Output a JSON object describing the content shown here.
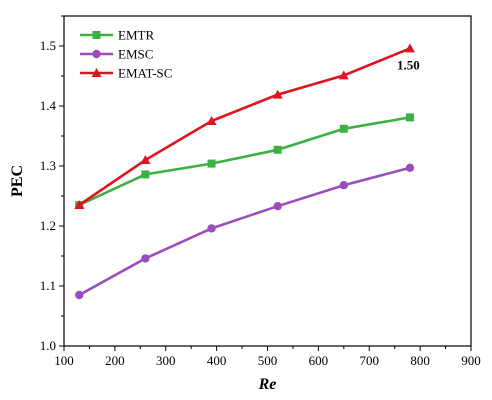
{
  "chart_data": {
    "type": "line",
    "xlabel": "Re",
    "ylabel": "PEC",
    "xlim": [
      100,
      900
    ],
    "ylim": [
      1.0,
      1.55
    ],
    "xticks": [
      100,
      200,
      300,
      400,
      500,
      600,
      700,
      800,
      900
    ],
    "yticks": [
      1.0,
      1.1,
      1.2,
      1.3,
      1.4,
      1.5
    ],
    "ytick_labels": [
      "1.0",
      "1.1",
      "1.2",
      "1.3",
      "1.4",
      "1.5"
    ],
    "grid": false,
    "legend_position": "top-left",
    "x": [
      130,
      260,
      390,
      520,
      650,
      780
    ],
    "series": [
      {
        "name": "EMTR",
        "color": "#3cb043",
        "marker": "square",
        "values": [
          1.235,
          1.286,
          1.304,
          1.327,
          1.362,
          1.381
        ]
      },
      {
        "name": "EMSC",
        "color": "#9b4dbb",
        "marker": "circle",
        "values": [
          1.085,
          1.146,
          1.196,
          1.233,
          1.268,
          1.297
        ]
      },
      {
        "name": "EMAT-SC",
        "color": "#e0141e",
        "marker": "triangle",
        "values": [
          1.235,
          1.31,
          1.375,
          1.419,
          1.451,
          1.496
        ]
      }
    ],
    "annotations": [
      {
        "text": "1.50",
        "x": 780,
        "y": 1.496,
        "series": "EMAT-SC"
      }
    ]
  }
}
